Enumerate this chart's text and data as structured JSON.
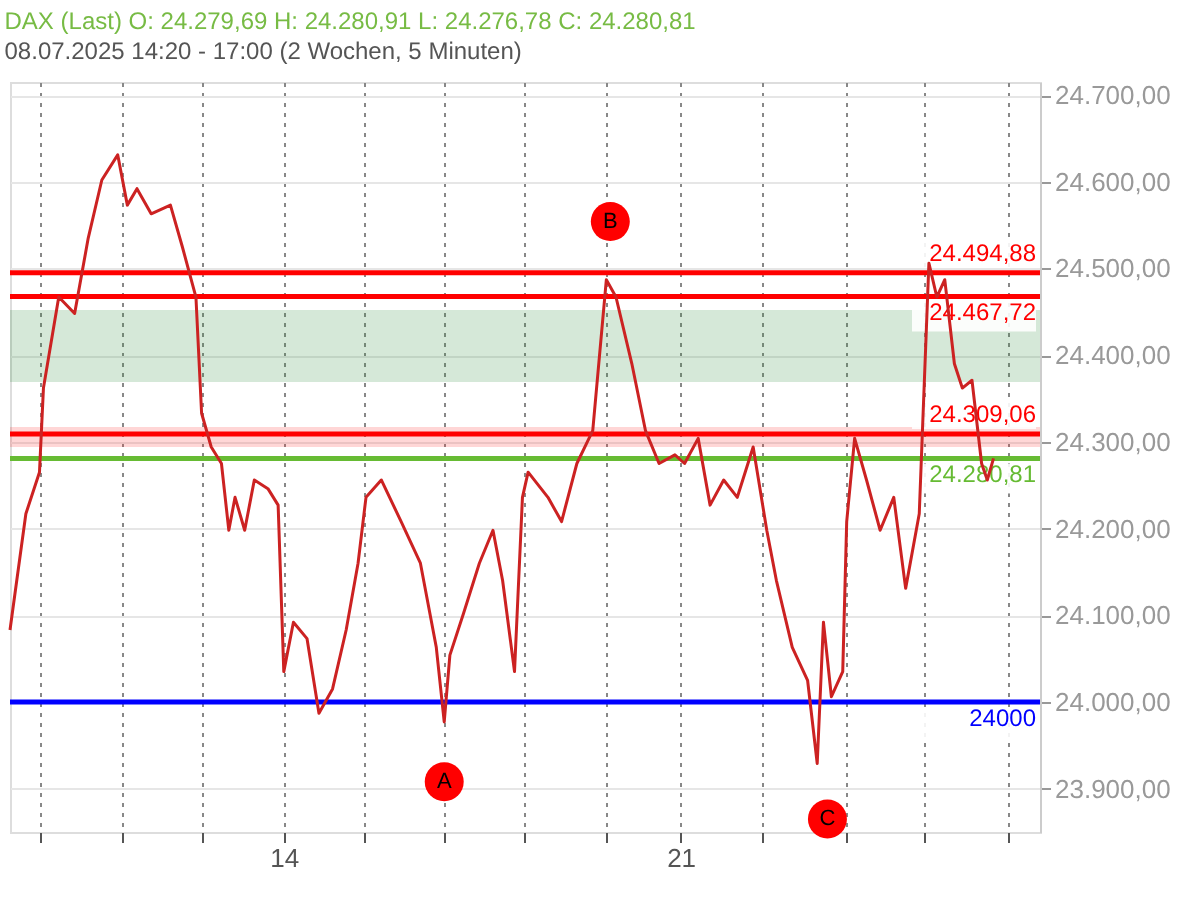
{
  "chart_data": {
    "type": "line",
    "title": "DAX (Last)  O: 24.279,69  H: 24.280,91  L: 24.276,78  C: 24.280,81",
    "subtitle": "08.07.2025 14:20 - 17:00  (2 Wochen, 5 Minuten)",
    "series": [
      {
        "color": "#cc2222",
        "x": [
          9.17,
          9.45,
          9.69,
          9.76,
          10.03,
          10.31,
          10.55,
          10.79,
          11.07,
          11.24,
          11.41,
          11.66,
          12.0,
          12.21,
          12.45,
          12.55,
          12.72,
          12.9,
          13.03,
          13.14,
          13.31,
          13.48,
          13.72,
          13.9,
          14.0,
          14.17,
          14.41,
          14.62,
          14.86,
          15.1,
          15.31,
          15.45,
          15.72,
          16.07,
          16.41,
          16.69,
          16.83,
          16.93,
          17.17,
          17.45,
          17.69,
          17.86,
          18.07,
          18.21,
          18.31,
          18.66,
          18.9,
          19.17,
          19.45,
          19.69,
          19.86,
          20.14,
          20.38,
          20.62,
          20.9,
          21.07,
          21.31,
          21.52,
          21.76,
          22.0,
          22.28,
          22.52,
          22.69,
          22.97,
          23.24,
          23.41,
          23.52,
          23.66,
          23.86,
          23.93,
          24.07,
          24.28,
          24.52,
          24.76,
          24.97,
          25.21,
          25.38,
          25.52,
          25.66,
          25.83,
          25.97,
          26.14,
          26.31,
          26.41,
          26.52
        ],
        "values": [
          24083,
          24217,
          24265,
          24362,
          24467,
          24448,
          24535,
          24602,
          24631,
          24573,
          24592,
          24563,
          24573,
          24525,
          24467,
          24333,
          24294,
          24275,
          24198,
          24236,
          24198,
          24256,
          24246,
          24227,
          24035,
          24092,
          24073,
          23987,
          24015,
          24083,
          24160,
          24236,
          24256,
          24208,
          24160,
          24063,
          23977,
          24054,
          24102,
          24160,
          24198,
          24140,
          24035,
          24236,
          24265,
          24236,
          24208,
          24275,
          24313,
          24487,
          24467,
          24390,
          24313,
          24275,
          24285,
          24275,
          24304,
          24227,
          24256,
          24236,
          24294,
          24198,
          24140,
          24063,
          24025,
          23929,
          24092,
          24006,
          24035,
          24208,
          24304,
          24256,
          24198,
          24236,
          24131,
          24217,
          24506,
          24467,
          24487,
          24390,
          24362,
          24371,
          24275,
          24256,
          24281
        ]
      }
    ],
    "xlim": [
      9.17,
      27.34
    ],
    "xticks": [
      {
        "value": 9.69,
        "label": null
      },
      {
        "value": 11.14,
        "label": null
      },
      {
        "value": 12.55,
        "label": null
      },
      14,
      {
        "value": 15.41,
        "label": null
      },
      {
        "value": 16.83,
        "label": null
      },
      {
        "value": 18.24,
        "label": null
      },
      {
        "value": 19.69,
        "label": null
      },
      21,
      {
        "value": 22.45,
        "label": null
      },
      {
        "value": 23.93,
        "label": null
      },
      {
        "value": 25.28,
        "label": null
      },
      {
        "value": 26.76,
        "label": null
      }
    ],
    "ylim": [
      23850,
      24715
    ],
    "yticks": [
      {
        "value": 23900,
        "label": "23.900,00"
      },
      {
        "value": 24000,
        "label": "24.000,00"
      },
      {
        "value": 24100,
        "label": "24.100,00"
      },
      {
        "value": 24200,
        "label": "24.200,00"
      },
      {
        "value": 24300,
        "label": "24.300,00"
      },
      {
        "value": 24400,
        "label": "24.400,00"
      },
      {
        "value": 24500,
        "label": "24.500,00"
      },
      {
        "value": 24600,
        "label": "24.600,00"
      },
      {
        "value": 24700,
        "label": "24.700,00"
      }
    ],
    "grid": true,
    "ref_lines": [
      {
        "axis": "y",
        "value": 24000,
        "label": "24000",
        "color": "#0000ff"
      },
      {
        "axis": "y",
        "value": 24494.88,
        "label": "24.494,88",
        "color": "#ff0000"
      },
      {
        "axis": "y",
        "value": 24467.72,
        "label": "24.467,72",
        "color": "#ff0000"
      },
      {
        "axis": "y",
        "value": 24309.06,
        "label": "24.309,06",
        "color": "#ff0000"
      },
      {
        "axis": "y",
        "value": 24280.81,
        "label": "24.280,81",
        "color": "#66bb33"
      }
    ],
    "bands": [
      {
        "axis": "y",
        "from": 24369,
        "to": 24452,
        "color": "#2e8b3a"
      },
      {
        "axis": "y",
        "from": 24294,
        "to": 24317,
        "color": "#ff3333"
      }
    ],
    "annotations": [
      {
        "text": "A",
        "x": 16.83,
        "y": 23908
      },
      {
        "text": "B",
        "x": 19.76,
        "y": 24554
      },
      {
        "text": "C",
        "x": 23.59,
        "y": 23865
      }
    ]
  }
}
